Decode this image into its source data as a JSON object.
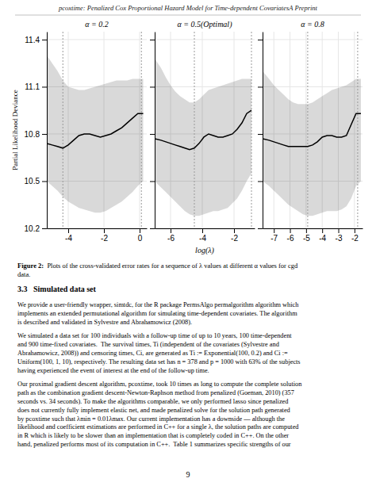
{
  "chart_data": [
    {
      "type": "line",
      "title": "α = 0.2",
      "ylabel": "Partial Likelihood Deviance",
      "x": [
        -5.2,
        -4.9,
        -4.6,
        -4.3,
        -4.0,
        -3.7,
        -3.4,
        -3.1,
        -2.8,
        -2.5,
        -2.2,
        -1.9,
        -1.6,
        -1.3,
        -1.0,
        -0.7,
        -0.4,
        -0.1,
        0.2
      ],
      "values": [
        10.74,
        10.73,
        10.72,
        10.71,
        10.73,
        10.76,
        10.79,
        10.8,
        10.8,
        10.79,
        10.78,
        10.79,
        10.8,
        10.82,
        10.84,
        10.87,
        10.9,
        10.93,
        10.93
      ],
      "upper": [
        11.3,
        11.25,
        11.2,
        11.14,
        11.1,
        11.09,
        11.08,
        11.08,
        11.09,
        11.1,
        11.11,
        11.12,
        11.13,
        11.14,
        11.14,
        11.14,
        11.15,
        11.15,
        11.15
      ],
      "lower": [
        10.5,
        10.47,
        10.44,
        10.4,
        10.37,
        10.35,
        10.33,
        10.32,
        10.31,
        10.3,
        10.3,
        10.31,
        10.33,
        10.35,
        10.37,
        10.4,
        10.43,
        10.47,
        10.5
      ],
      "vlines": [
        -4.3,
        0.1
      ],
      "color": "#000000",
      "xlim": [
        -5.2,
        0.4
      ],
      "xticks": [
        -4,
        -2,
        0
      ],
      "ylim": [
        10.2,
        11.45
      ],
      "yticks": [
        10.2,
        10.5,
        10.8,
        11.1,
        11.4
      ],
      "grid": true
    },
    {
      "type": "line",
      "title": "α = 0.5(Optimal)",
      "xlabel": "log(λ)",
      "x": [
        -7.0,
        -6.6,
        -6.3,
        -6.0,
        -5.7,
        -5.4,
        -5.1,
        -4.8,
        -4.5,
        -4.2,
        -3.9,
        -3.6,
        -3.3,
        -3.0,
        -2.7,
        -2.4,
        -2.1,
        -1.8,
        -1.5,
        -1.2,
        -0.9
      ],
      "values": [
        10.77,
        10.76,
        10.75,
        10.74,
        10.73,
        10.72,
        10.71,
        10.7,
        10.71,
        10.74,
        10.78,
        10.8,
        10.79,
        10.78,
        10.78,
        10.79,
        10.8,
        10.83,
        10.87,
        10.93,
        10.95
      ],
      "upper": [
        11.28,
        11.22,
        11.16,
        11.11,
        11.07,
        11.04,
        11.02,
        11.0,
        11.0,
        11.02,
        11.05,
        11.08,
        11.09,
        11.1,
        11.11,
        11.12,
        11.13,
        11.14,
        11.15,
        11.15,
        11.15
      ],
      "lower": [
        10.5,
        10.46,
        10.43,
        10.4,
        10.37,
        10.34,
        10.31,
        10.29,
        10.28,
        10.28,
        10.29,
        10.3,
        10.31,
        10.31,
        10.32,
        10.33,
        10.36,
        10.39,
        10.44,
        10.5,
        10.55
      ],
      "vlines": [
        -4.5,
        -0.9
      ],
      "color": "#000000",
      "xlim": [
        -7.0,
        -0.7
      ],
      "xticks": [
        -6,
        -4,
        -2
      ],
      "ylim": [
        10.2,
        11.45
      ],
      "yticks": [
        10.2,
        10.5,
        10.8,
        11.1,
        11.4
      ],
      "grid": true,
      "tick_labels": "x"
    },
    {
      "type": "line",
      "title": "α = 0.8",
      "x": [
        -7.7,
        -7.3,
        -7.0,
        -6.7,
        -6.4,
        -6.1,
        -5.8,
        -5.5,
        -5.2,
        -4.9,
        -4.6,
        -4.3,
        -4.0,
        -3.7,
        -3.4,
        -3.1,
        -2.8,
        -2.5,
        -2.2,
        -1.9,
        -1.6
      ],
      "values": [
        10.77,
        10.76,
        10.75,
        10.74,
        10.73,
        10.72,
        10.72,
        10.72,
        10.72,
        10.72,
        10.73,
        10.75,
        10.78,
        10.79,
        10.79,
        10.78,
        10.78,
        10.79,
        10.86,
        10.93,
        10.93
      ],
      "upper": [
        11.2,
        11.15,
        11.11,
        11.08,
        11.05,
        11.02,
        11.0,
        10.99,
        10.99,
        10.99,
        11.0,
        11.02,
        11.04,
        11.06,
        11.08,
        11.09,
        11.1,
        11.11,
        11.13,
        11.15,
        11.15
      ],
      "lower": [
        10.5,
        10.47,
        10.44,
        10.41,
        10.38,
        10.35,
        10.33,
        10.31,
        10.29,
        10.28,
        10.28,
        10.29,
        10.3,
        10.31,
        10.31,
        10.31,
        10.32,
        10.34,
        10.39,
        10.47,
        10.5
      ],
      "vlines": [
        -4.9,
        -1.8
      ],
      "color": "#000000",
      "xlim": [
        -7.7,
        -1.5
      ],
      "xticks": [
        -7,
        -6,
        -5,
        -4,
        -3,
        -2
      ],
      "ylim": [
        10.2,
        11.45
      ],
      "yticks": [
        10.2,
        10.5,
        10.8,
        11.1,
        11.4
      ],
      "grid": true,
      "tick_labels": "x"
    }
  ],
  "page": {
    "header": "pcoxtime: Penalized Cox Proportional Hazard Model for Time-dependent CovariatesA Preprint",
    "caption_bold": "Figure 2:",
    "caption": "  Plots of the cross-validated error rates for a sequence of λ values at different α values for cgd\ndata.",
    "section_header": "3.3   Simulated data set",
    "body": [
      "We provide a user-friendly wrapper, simtdc, for the R package PermsAlgo permalgorithm algorithm which\nimplements an extended permutational algorithm for simulating time-dependent covariates. The algorithm\nis described and validated in Sylvestre and Abrahamowicz (2008).",
      "We simulated a data set for 100 individuals with a follow-up time of up to 10 years, 100 time-dependent\nand 900 time-fixed covariates.  The survival times, Ti (independent of the covariates (Sylvestre and\nAbrahamowicz, 2008)) and censoring times, Ci, are generated as Ti := Exponential(100, 0.2) and Ci :=\nUniform(100, 1, 10), respectively. The resulting data set has n = 378 and p = 1000 with 63% of the subjects\nhaving experienced the event of interest at the end of the follow-up time.",
      "Our proximal gradient descent algorithm, pcoxtime, took 10 times as long to compute the complete solution\npath as the combination gradient descent-Newton-Raphson method from penalized (Goeman, 2010) (357\nseconds vs. 34 seconds). To make the algorithms comparable, we only performed lasso since penalized\ndoes not currently fully implement elastic net, and made penalized solve for the solution path generated\nby pcoxtime such that λmin = 0.01λmax. Our current implementation has a downside — although the\nlikelihood and coefficient estimations are performed in C++ for a single λ, the solution paths are computed\nin R which is likely to be slower than an implementation that is completely coded in C++. On the other\nhand, penalized performs most of its computation in C++.  Table 1 summarizes specific strengths of our"
    ],
    "page_number": "9"
  }
}
